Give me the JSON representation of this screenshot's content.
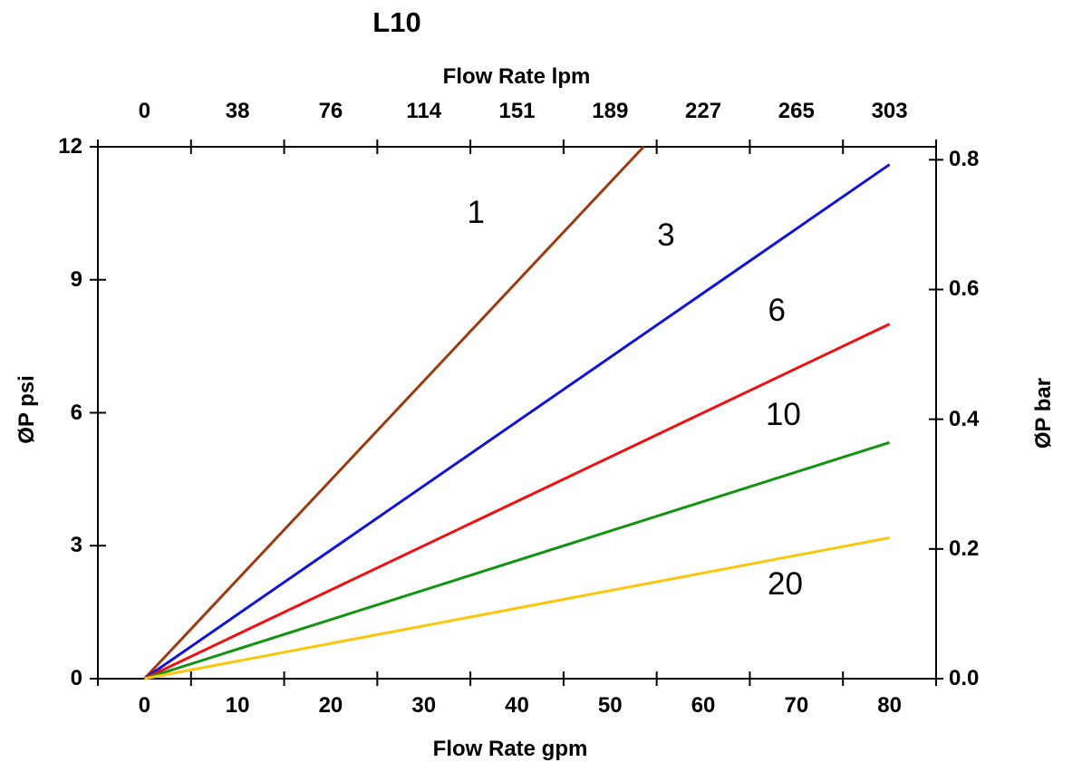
{
  "chart_data": {
    "type": "line",
    "title": "L10",
    "x_axis_top": {
      "label": "Flow Rate lpm",
      "ticks": [
        "0",
        "38",
        "76",
        "114",
        "151",
        "189",
        "227",
        "265",
        "303"
      ]
    },
    "x_axis_bottom": {
      "label": "Flow Rate gpm",
      "ticks": [
        "0",
        "10",
        "20",
        "30",
        "40",
        "50",
        "60",
        "70",
        "80"
      ]
    },
    "y_axis_left": {
      "label": "ØP psi",
      "ticks": [
        "0",
        "3",
        "6",
        "9",
        "12"
      ],
      "range": [
        0,
        12
      ]
    },
    "y_axis_right": {
      "label": "ØP bar",
      "ticks": [
        "0.0",
        "0.2",
        "0.4",
        "0.6",
        "0.8"
      ],
      "range": [
        0,
        0.82
      ]
    },
    "grid": false,
    "legend": "inline-curve-labels",
    "series": [
      {
        "label": "1",
        "color": "#9C3B10",
        "points_gpm_psi": [
          [
            0,
            0
          ],
          [
            53.6,
            12
          ]
        ],
        "label_at_gpm_psi": [
          35.6,
          10.5
        ]
      },
      {
        "label": "3",
        "color": "#1212D9",
        "points_gpm_psi": [
          [
            0,
            0
          ],
          [
            80,
            11.6
          ]
        ],
        "label_at_gpm_psi": [
          56.0,
          10.0
        ]
      },
      {
        "label": "6",
        "color": "#EE1111",
        "points_gpm_psi": [
          [
            0,
            0
          ],
          [
            80,
            8.0
          ]
        ],
        "label_at_gpm_psi": [
          67.9,
          8.3
        ]
      },
      {
        "label": "10",
        "color": "#129312",
        "points_gpm_psi": [
          [
            0,
            0
          ],
          [
            80,
            5.33
          ]
        ],
        "label_at_gpm_psi": [
          68.6,
          5.95
        ]
      },
      {
        "label": "20",
        "color": "#FCC60D",
        "points_gpm_psi": [
          [
            0,
            0
          ],
          [
            80,
            3.18
          ]
        ],
        "label_at_gpm_psi": [
          68.8,
          2.13
        ]
      }
    ]
  }
}
